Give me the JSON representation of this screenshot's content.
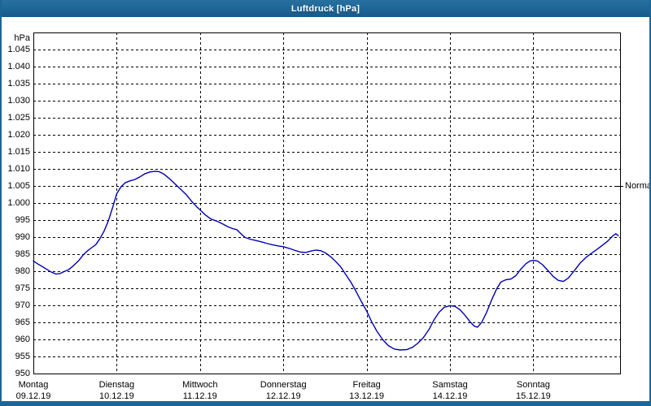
{
  "window": {
    "title": "Luftdruck [hPa]"
  },
  "colors": {
    "frame_blue": "#1e6597",
    "curve_blue": "#0000b4",
    "grid_black": "#000000",
    "background_white": "#ffffff",
    "title_text": "#ffffff"
  },
  "chart_data": {
    "type": "line",
    "title": "Luftdruck [hPa]",
    "y_unit_label": "hPa",
    "ylabel": "hPa",
    "xlabel": "",
    "ylim": [
      950,
      1050
    ],
    "grid": "dashed",
    "y_ticks": [
      {
        "v": 1045,
        "label": "1.045"
      },
      {
        "v": 1040,
        "label": "1.040"
      },
      {
        "v": 1035,
        "label": "1.035"
      },
      {
        "v": 1030,
        "label": "1.030"
      },
      {
        "v": 1025,
        "label": "1.025"
      },
      {
        "v": 1020,
        "label": "1.020"
      },
      {
        "v": 1015,
        "label": "1.015"
      },
      {
        "v": 1010,
        "label": "1.010"
      },
      {
        "v": 1005,
        "label": "1.005"
      },
      {
        "v": 1000,
        "label": "1.000"
      },
      {
        "v": 995,
        "label": "995"
      },
      {
        "v": 990,
        "label": "990"
      },
      {
        "v": 985,
        "label": "985"
      },
      {
        "v": 980,
        "label": "980"
      },
      {
        "v": 975,
        "label": "975"
      },
      {
        "v": 970,
        "label": "970"
      },
      {
        "v": 965,
        "label": "965"
      },
      {
        "v": 960,
        "label": "960"
      },
      {
        "v": 955,
        "label": "955"
      },
      {
        "v": 950,
        "label": "950"
      }
    ],
    "x_days": [
      {
        "day": "Montag",
        "date": "09.12.19"
      },
      {
        "day": "Dienstag",
        "date": "10.12.19"
      },
      {
        "day": "Mittwoch",
        "date": "11.12.19"
      },
      {
        "day": "Donnerstag",
        "date": "12.12.19"
      },
      {
        "day": "Freitag",
        "date": "13.12.19"
      },
      {
        "day": "Samstag",
        "date": "14.12.19"
      },
      {
        "day": "Sonntag",
        "date": "15.12.19"
      }
    ],
    "normal_marker": {
      "label": "Normal",
      "value": 1005
    },
    "series": [
      {
        "name": "Luftdruck",
        "points": [
          [
            0.0,
            983.0
          ],
          [
            0.05,
            982.2
          ],
          [
            0.11,
            981.3
          ],
          [
            0.17,
            980.4
          ],
          [
            0.22,
            979.7
          ],
          [
            0.27,
            979.2
          ],
          [
            0.32,
            979.3
          ],
          [
            0.37,
            979.9
          ],
          [
            0.42,
            980.4
          ],
          [
            0.48,
            981.6
          ],
          [
            0.54,
            983.0
          ],
          [
            0.6,
            984.8
          ],
          [
            0.65,
            986.0
          ],
          [
            0.7,
            986.9
          ],
          [
            0.75,
            987.8
          ],
          [
            0.8,
            989.6
          ],
          [
            0.85,
            991.8
          ],
          [
            0.9,
            994.8
          ],
          [
            0.95,
            998.6
          ],
          [
            1.0,
            1002.7
          ],
          [
            1.05,
            1004.7
          ],
          [
            1.1,
            1005.9
          ],
          [
            1.16,
            1006.5
          ],
          [
            1.22,
            1006.9
          ],
          [
            1.28,
            1007.7
          ],
          [
            1.34,
            1008.6
          ],
          [
            1.4,
            1009.1
          ],
          [
            1.46,
            1009.3
          ],
          [
            1.51,
            1009.2
          ],
          [
            1.57,
            1008.4
          ],
          [
            1.63,
            1007.2
          ],
          [
            1.7,
            1005.6
          ],
          [
            1.77,
            1004.0
          ],
          [
            1.84,
            1002.3
          ],
          [
            1.91,
            1000.2
          ],
          [
            1.96,
            998.9
          ],
          [
            2.0,
            998.0
          ],
          [
            2.06,
            996.6
          ],
          [
            2.13,
            995.3
          ],
          [
            2.2,
            994.7
          ],
          [
            2.27,
            993.9
          ],
          [
            2.33,
            993.1
          ],
          [
            2.39,
            992.5
          ],
          [
            2.44,
            992.2
          ],
          [
            2.49,
            991.0
          ],
          [
            2.54,
            989.9
          ],
          [
            2.6,
            989.4
          ],
          [
            2.67,
            989.0
          ],
          [
            2.74,
            988.6
          ],
          [
            2.81,
            988.1
          ],
          [
            2.88,
            987.7
          ],
          [
            2.94,
            987.4
          ],
          [
            3.0,
            987.2
          ],
          [
            3.07,
            986.7
          ],
          [
            3.14,
            986.1
          ],
          [
            3.21,
            985.6
          ],
          [
            3.27,
            985.5
          ],
          [
            3.33,
            985.9
          ],
          [
            3.39,
            986.2
          ],
          [
            3.45,
            986.0
          ],
          [
            3.51,
            985.3
          ],
          [
            3.57,
            984.2
          ],
          [
            3.63,
            982.8
          ],
          [
            3.69,
            981.2
          ],
          [
            3.75,
            979.0
          ],
          [
            3.81,
            976.8
          ],
          [
            3.87,
            974.2
          ],
          [
            3.93,
            971.4
          ],
          [
            4.0,
            968.3
          ],
          [
            4.06,
            965.2
          ],
          [
            4.12,
            962.5
          ],
          [
            4.19,
            960.0
          ],
          [
            4.26,
            958.2
          ],
          [
            4.33,
            957.2
          ],
          [
            4.4,
            956.9
          ],
          [
            4.48,
            957.0
          ],
          [
            4.55,
            957.7
          ],
          [
            4.61,
            958.8
          ],
          [
            4.68,
            960.5
          ],
          [
            4.75,
            963.0
          ],
          [
            4.81,
            965.8
          ],
          [
            4.87,
            968.0
          ],
          [
            4.93,
            969.4
          ],
          [
            5.0,
            969.9
          ],
          [
            5.06,
            969.7
          ],
          [
            5.12,
            968.7
          ],
          [
            5.18,
            967.1
          ],
          [
            5.24,
            965.2
          ],
          [
            5.29,
            963.9
          ],
          [
            5.33,
            963.6
          ],
          [
            5.38,
            965.0
          ],
          [
            5.44,
            968.0
          ],
          [
            5.5,
            971.6
          ],
          [
            5.56,
            974.8
          ],
          [
            5.61,
            976.8
          ],
          [
            5.67,
            977.5
          ],
          [
            5.73,
            977.7
          ],
          [
            5.79,
            978.7
          ],
          [
            5.85,
            980.6
          ],
          [
            5.91,
            982.2
          ],
          [
            5.96,
            983.0
          ],
          [
            6.0,
            983.2
          ],
          [
            6.05,
            983.0
          ],
          [
            6.11,
            981.9
          ],
          [
            6.18,
            980.1
          ],
          [
            6.24,
            978.4
          ],
          [
            6.3,
            977.3
          ],
          [
            6.36,
            977.0
          ],
          [
            6.42,
            978.0
          ],
          [
            6.49,
            980.1
          ],
          [
            6.56,
            982.3
          ],
          [
            6.63,
            984.0
          ],
          [
            6.7,
            985.3
          ],
          [
            6.77,
            986.5
          ],
          [
            6.84,
            987.8
          ],
          [
            6.9,
            989.0
          ],
          [
            6.95,
            990.3
          ],
          [
            6.99,
            991.0
          ],
          [
            7.02,
            990.4
          ]
        ]
      }
    ]
  }
}
